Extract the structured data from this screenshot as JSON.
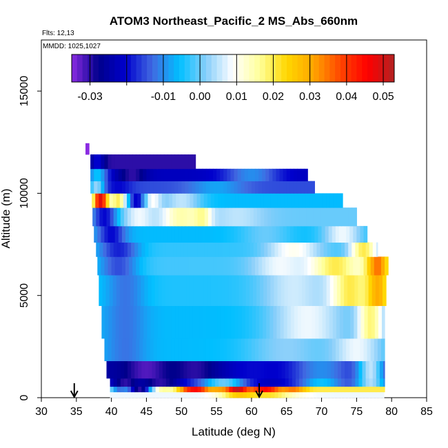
{
  "chart_data": {
    "type": "heatmap",
    "title": "ATOM3 Northeast_Pacific_2 MS_Abs_660nm",
    "flights_label": "Flts: 12,13",
    "mmdd_label": "MMDD: 1025,1027",
    "xlabel": "Latitude (deg N)",
    "ylabel": "Altitude (m)",
    "xlim": [
      30,
      85
    ],
    "ylim": [
      0,
      17500
    ],
    "x_ticks": [
      30,
      35,
      40,
      45,
      50,
      55,
      60,
      65,
      70,
      75,
      80,
      85
    ],
    "y_ticks": [
      0,
      5000,
      10000,
      15000
    ],
    "colorbar": {
      "min": -0.035,
      "max": 0.053,
      "ticks": [
        -0.03,
        -0.01,
        0.0,
        0.01,
        0.02,
        0.03,
        0.04,
        0.05
      ],
      "tick_labels": [
        "-0.03",
        "-0.01",
        "0.00",
        "0.01",
        "0.02",
        "0.03",
        "0.04",
        "0.05"
      ],
      "colors": [
        "#8a2be2",
        "#00008b",
        "#0000cd",
        "#4169e1",
        "#00bfff",
        "#87cefa",
        "#ffffff",
        "#ffff99",
        "#ffd700",
        "#ffa500",
        "#ff4500",
        "#ff0000",
        "#b22222"
      ]
    },
    "flight_markers_lat": [
      34.7,
      61.1
    ],
    "altitude_bands": [
      {
        "alt": [
          0,
          280
        ],
        "lat": [
          39.8,
          78.9
        ],
        "base": 0.008,
        "spots": [
          {
            "lat": 59,
            "w": 3,
            "v": 0.03
          },
          {
            "lat": 62,
            "w": 4,
            "v": 0.022
          }
        ]
      },
      {
        "alt": [
          280,
          550
        ],
        "lat": [
          39.8,
          79.0
        ],
        "base": 0.02,
        "spots": [
          {
            "lat": 41,
            "w": 1.5,
            "v": -0.01
          },
          {
            "lat": 44,
            "w": 2,
            "v": -0.03
          },
          {
            "lat": 49,
            "w": 1.5,
            "v": 0.01
          },
          {
            "lat": 52,
            "w": 2.5,
            "v": 0.045
          },
          {
            "lat": 55,
            "w": 1.5,
            "v": 0.03
          },
          {
            "lat": 58,
            "w": 1.6,
            "v": 0.052
          },
          {
            "lat": 62,
            "w": 2.4,
            "v": 0.045
          },
          {
            "lat": 66,
            "w": 2,
            "v": 0.035
          },
          {
            "lat": 71,
            "w": 3,
            "v": 0.02
          }
        ]
      },
      {
        "alt": [
          550,
          950
        ],
        "lat": [
          39.8,
          79.0
        ],
        "base": -0.018,
        "spots": [
          {
            "lat": 42,
            "w": 2,
            "v": -0.03
          },
          {
            "lat": 47,
            "w": 3,
            "v": -0.03
          },
          {
            "lat": 56,
            "w": 3,
            "v": 0.0
          },
          {
            "lat": 63,
            "w": 3,
            "v": -0.022
          },
          {
            "lat": 70,
            "w": 3,
            "v": -0.005
          },
          {
            "lat": 77,
            "w": 2,
            "v": 0.004
          }
        ]
      },
      {
        "alt": [
          950,
          1800
        ],
        "lat": [
          39.3,
          79.0
        ],
        "base": -0.025,
        "spots": [
          {
            "lat": 45,
            "w": 3,
            "v": -0.032
          },
          {
            "lat": 52,
            "w": 3,
            "v": -0.03
          },
          {
            "lat": 60,
            "w": 4,
            "v": -0.02
          },
          {
            "lat": 70,
            "w": 5,
            "v": -0.01
          },
          {
            "lat": 77,
            "w": 2,
            "v": 0.005
          }
        ]
      },
      {
        "alt": [
          1800,
          2900
        ],
        "lat": [
          39.0,
          79.0
        ],
        "base": -0.006,
        "spots": [
          {
            "lat": 42,
            "w": 3,
            "v": -0.012
          },
          {
            "lat": 65,
            "w": 6,
            "v": 0.002
          },
          {
            "lat": 75,
            "w": 4,
            "v": 0.008
          }
        ]
      },
      {
        "alt": [
          2900,
          4500
        ],
        "lat": [
          38.6,
          79.0
        ],
        "base": -0.006,
        "spots": [
          {
            "lat": 42,
            "w": 3,
            "v": -0.012
          },
          {
            "lat": 68,
            "w": 6,
            "v": 0.008
          },
          {
            "lat": 77,
            "w": 2,
            "v": 0.018
          }
        ]
      },
      {
        "alt": [
          4500,
          6000
        ],
        "lat": [
          38.2,
          79.2
        ],
        "base": -0.004,
        "spots": [
          {
            "lat": 42,
            "w": 3,
            "v": -0.012
          },
          {
            "lat": 66,
            "w": 5,
            "v": 0.006
          },
          {
            "lat": 74,
            "w": 3,
            "v": 0.02
          },
          {
            "lat": 78,
            "w": 2,
            "v": 0.03
          }
        ]
      },
      {
        "alt": [
          6000,
          6900
        ],
        "lat": [
          38.0,
          79.5
        ],
        "base": -0.002,
        "spots": [
          {
            "lat": 41,
            "w": 3,
            "v": -0.015
          },
          {
            "lat": 64,
            "w": 4,
            "v": 0.008
          },
          {
            "lat": 72,
            "w": 4,
            "v": 0.02
          },
          {
            "lat": 78,
            "w": 2,
            "v": 0.035
          }
        ]
      },
      {
        "alt": [
          6900,
          7600
        ],
        "lat": [
          37.8,
          78.0
        ],
        "base": -0.003,
        "spots": [
          {
            "lat": 41,
            "w": 3,
            "v": -0.018
          },
          {
            "lat": 66,
            "w": 4,
            "v": 0.01
          },
          {
            "lat": 76,
            "w": 2,
            "v": 0.02
          }
        ]
      },
      {
        "alt": [
          7600,
          8400
        ],
        "lat": [
          37.5,
          76.5
        ],
        "base": -0.006,
        "spots": [
          {
            "lat": 40,
            "w": 2,
            "v": -0.02
          },
          {
            "lat": 62,
            "w": 4,
            "v": 0.0
          },
          {
            "lat": 73,
            "w": 3,
            "v": 0.008
          }
        ]
      },
      {
        "alt": [
          8400,
          9300
        ],
        "lat": [
          37.3,
          75.0
        ],
        "base": 0.0,
        "spots": [
          {
            "lat": 39,
            "w": 2,
            "v": -0.02
          },
          {
            "lat": 44,
            "w": 2,
            "v": 0.008
          },
          {
            "lat": 50,
            "w": 3,
            "v": 0.015
          },
          {
            "lat": 53,
            "w": 1.5,
            "v": 0.02
          },
          {
            "lat": 58,
            "w": 4,
            "v": 0.005
          }
        ]
      },
      {
        "alt": [
          9300,
          10000
        ],
        "lat": [
          37.2,
          73.0
        ],
        "base": -0.006,
        "spots": [
          {
            "lat": 38.5,
            "w": 1.2,
            "v": 0.05
          },
          {
            "lat": 41,
            "w": 1.5,
            "v": 0.02
          },
          {
            "lat": 44,
            "w": 1.5,
            "v": -0.025
          },
          {
            "lat": 46,
            "w": 1.5,
            "v": 0.01
          },
          {
            "lat": 50,
            "w": 3,
            "v": 0.005
          }
        ]
      },
      {
        "alt": [
          10000,
          10600
        ],
        "lat": [
          37.0,
          69.0
        ],
        "base": -0.015,
        "spots": [
          {
            "lat": 38,
            "w": 1.2,
            "v": 0.005
          },
          {
            "lat": 41,
            "w": 2,
            "v": -0.02
          },
          {
            "lat": 55,
            "w": 4,
            "v": -0.008
          }
        ]
      },
      {
        "alt": [
          10600,
          11200
        ],
        "lat": [
          37.0,
          68.0
        ],
        "base": -0.022,
        "spots": [
          {
            "lat": 38,
            "w": 1.5,
            "v": -0.005
          },
          {
            "lat": 43,
            "w": 2,
            "v": -0.03
          },
          {
            "lat": 60,
            "w": 4,
            "v": -0.01
          }
        ]
      },
      {
        "alt": [
          11200,
          11900
        ],
        "lat": [
          37.0,
          52.0
        ],
        "base": -0.03,
        "spots": [
          {
            "lat": 38,
            "w": 1,
            "v": -0.02
          }
        ]
      },
      {
        "alt": [
          11900,
          12450
        ],
        "lat": [
          36.3,
          36.8
        ],
        "base": -0.035,
        "spots": []
      }
    ]
  }
}
